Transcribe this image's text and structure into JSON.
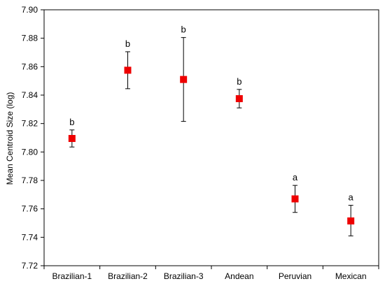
{
  "chart_data": {
    "type": "scatter",
    "title": "",
    "xlabel": "",
    "ylabel": "Mean Centroid Size (log)",
    "ylim": [
      7.72,
      7.9
    ],
    "yticks": [
      "7.72",
      "7.74",
      "7.76",
      "7.78",
      "7.80",
      "7.82",
      "7.84",
      "7.86",
      "7.88",
      "7.90"
    ],
    "categories": [
      "Brazilian-1",
      "Brazilian-2",
      "Brazilian-3",
      "Andean",
      "Peruvian",
      "Mexican"
    ],
    "values": [
      7.8095,
      7.8575,
      7.851,
      7.8375,
      7.767,
      7.7515
    ],
    "error_low": [
      7.8035,
      7.8445,
      7.8215,
      7.831,
      7.7575,
      7.741
    ],
    "error_high": [
      7.8155,
      7.8705,
      7.8805,
      7.844,
      7.7765,
      7.7625
    ],
    "significance_labels": [
      "b",
      "b",
      "b",
      "b",
      "a",
      "a"
    ],
    "marker": "square",
    "marker_color": "#ee0000",
    "grid": false,
    "legend": "none"
  }
}
